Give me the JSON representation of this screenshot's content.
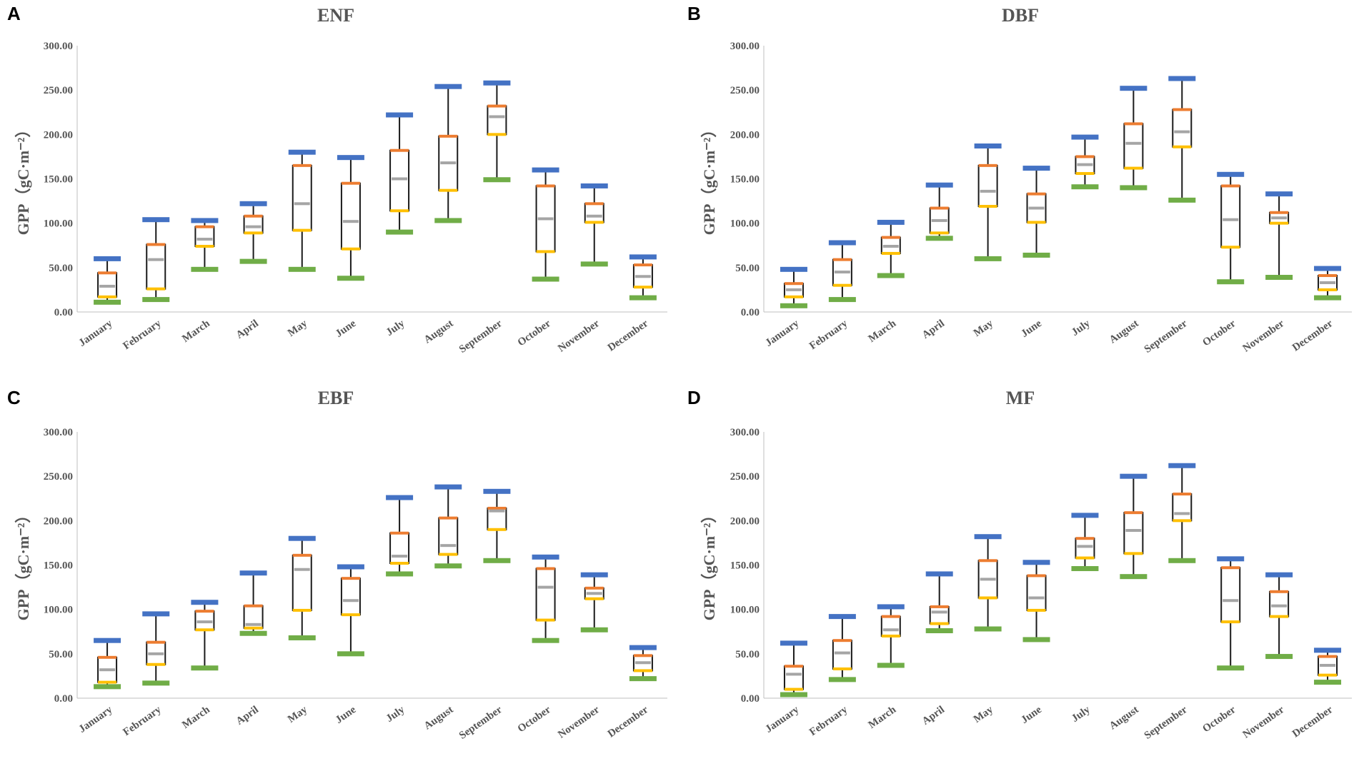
{
  "chart_data": [
    {
      "panel": "A",
      "type": "box",
      "title": "ENF",
      "ylabel": "GPP（gC·m⁻²）",
      "ylim": [
        0,
        300
      ],
      "yticks": [
        "0.00",
        "50.00",
        "100.00",
        "150.00",
        "200.00",
        "250.00",
        "300.00"
      ],
      "categories": [
        "January",
        "February",
        "March",
        "April",
        "May",
        "June",
        "July",
        "August",
        "September",
        "October",
        "November",
        "December"
      ],
      "series": [
        {
          "name": "max",
          "color": "#4472C4",
          "values": [
            60,
            104,
            103,
            122,
            180,
            174,
            222,
            254,
            258,
            160,
            142,
            62
          ]
        },
        {
          "name": "q3",
          "color": "#ED7D31",
          "values": [
            44,
            76,
            96,
            108,
            165,
            145,
            182,
            198,
            232,
            142,
            122,
            53
          ]
        },
        {
          "name": "median",
          "color": "#A5A5A5",
          "values": [
            29,
            59,
            82,
            96,
            122,
            102,
            150,
            168,
            220,
            105,
            108,
            40
          ]
        },
        {
          "name": "q1",
          "color": "#FFC000",
          "values": [
            17,
            26,
            74,
            89,
            92,
            71,
            114,
            137,
            200,
            68,
            101,
            28
          ]
        },
        {
          "name": "min",
          "color": "#70AD47",
          "values": [
            11,
            14,
            48,
            57,
            48,
            38,
            90,
            103,
            149,
            37,
            54,
            16
          ]
        }
      ]
    },
    {
      "panel": "B",
      "type": "box",
      "title": "DBF",
      "ylabel": "GPP（gC·m⁻²）",
      "ylim": [
        0,
        300
      ],
      "yticks": [
        "0.00",
        "50.00",
        "100.00",
        "150.00",
        "200.00",
        "250.00",
        "300.00"
      ],
      "categories": [
        "January",
        "February",
        "March",
        "April",
        "May",
        "June",
        "July",
        "August",
        "September",
        "October",
        "November",
        "December"
      ],
      "series": [
        {
          "name": "max",
          "color": "#4472C4",
          "values": [
            48,
            78,
            101,
            143,
            187,
            162,
            197,
            252,
            263,
            155,
            133,
            49
          ]
        },
        {
          "name": "q3",
          "color": "#ED7D31",
          "values": [
            32,
            59,
            84,
            117,
            165,
            133,
            175,
            212,
            228,
            142,
            112,
            41
          ]
        },
        {
          "name": "median",
          "color": "#A5A5A5",
          "values": [
            25,
            45,
            74,
            103,
            136,
            117,
            166,
            190,
            203,
            104,
            106,
            33
          ]
        },
        {
          "name": "q1",
          "color": "#FFC000",
          "values": [
            17,
            30,
            66,
            89,
            119,
            101,
            156,
            162,
            186,
            73,
            100,
            25
          ]
        },
        {
          "name": "min",
          "color": "#70AD47",
          "values": [
            7,
            14,
            41,
            83,
            60,
            64,
            141,
            140,
            126,
            34,
            39,
            16
          ]
        }
      ]
    },
    {
      "panel": "C",
      "type": "box",
      "title": "EBF",
      "ylabel": "GPP（gC·m⁻²）",
      "ylim": [
        0,
        300
      ],
      "yticks": [
        "0.00",
        "50.00",
        "100.00",
        "150.00",
        "200.00",
        "250.00",
        "300.00"
      ],
      "categories": [
        "January",
        "February",
        "March",
        "April",
        "May",
        "June",
        "July",
        "August",
        "September",
        "October",
        "November",
        "December"
      ],
      "series": [
        {
          "name": "max",
          "color": "#4472C4",
          "values": [
            65,
            95,
            108,
            141,
            180,
            148,
            226,
            238,
            233,
            159,
            139,
            57
          ]
        },
        {
          "name": "q3",
          "color": "#ED7D31",
          "values": [
            46,
            63,
            98,
            104,
            161,
            135,
            186,
            203,
            214,
            146,
            124,
            48
          ]
        },
        {
          "name": "median",
          "color": "#A5A5A5",
          "values": [
            32,
            50,
            86,
            83,
            145,
            110,
            160,
            172,
            211,
            125,
            118,
            40
          ]
        },
        {
          "name": "q1",
          "color": "#FFC000",
          "values": [
            18,
            38,
            77,
            79,
            99,
            94,
            152,
            162,
            190,
            88,
            112,
            31
          ]
        },
        {
          "name": "min",
          "color": "#70AD47",
          "values": [
            13,
            17,
            34,
            73,
            68,
            50,
            140,
            149,
            155,
            65,
            77,
            22
          ]
        }
      ]
    },
    {
      "panel": "D",
      "type": "box",
      "title": "MF",
      "ylabel": "GPP（gC·m⁻²）",
      "ylim": [
        0,
        300
      ],
      "yticks": [
        "0.00",
        "50.00",
        "100.00",
        "150.00",
        "200.00",
        "250.00",
        "300.00"
      ],
      "categories": [
        "January",
        "February",
        "March",
        "April",
        "May",
        "June",
        "July",
        "August",
        "September",
        "October",
        "November",
        "December"
      ],
      "series": [
        {
          "name": "max",
          "color": "#4472C4",
          "values": [
            62,
            92,
            103,
            140,
            182,
            153,
            206,
            250,
            262,
            157,
            139,
            54
          ]
        },
        {
          "name": "q3",
          "color": "#ED7D31",
          "values": [
            36,
            65,
            92,
            103,
            155,
            138,
            180,
            209,
            230,
            147,
            120,
            47
          ]
        },
        {
          "name": "median",
          "color": "#A5A5A5",
          "values": [
            27,
            51,
            77,
            97,
            134,
            113,
            171,
            189,
            208,
            110,
            104,
            37
          ]
        },
        {
          "name": "q1",
          "color": "#FFC000",
          "values": [
            10,
            33,
            70,
            84,
            113,
            99,
            158,
            163,
            200,
            86,
            92,
            26
          ]
        },
        {
          "name": "min",
          "color": "#70AD47",
          "values": [
            4,
            21,
            37,
            76,
            78,
            66,
            146,
            137,
            155,
            34,
            47,
            18
          ]
        }
      ]
    }
  ]
}
